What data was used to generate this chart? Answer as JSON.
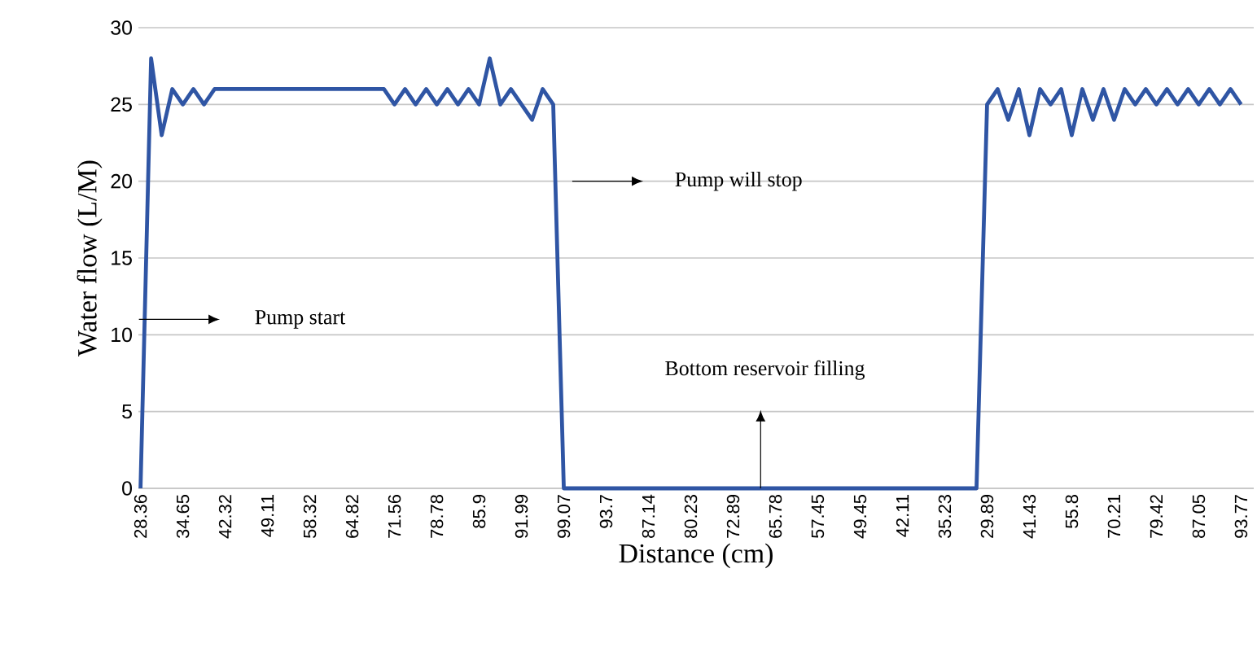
{
  "chart_data": {
    "type": "line",
    "xlabel": "Distance (cm)",
    "ylabel": "Water flow (L/M)",
    "categories": [
      "28.36",
      null,
      null,
      null,
      "34.65",
      null,
      null,
      null,
      "42.32",
      null,
      null,
      null,
      "49.11",
      null,
      null,
      null,
      "58.32",
      null,
      null,
      null,
      "64.82",
      null,
      null,
      null,
      "71.56",
      null,
      null,
      null,
      "78.78",
      null,
      null,
      null,
      "85.9",
      null,
      null,
      null,
      "91.99",
      null,
      null,
      null,
      "99.07",
      null,
      null,
      null,
      "93.7",
      null,
      null,
      null,
      "87.14",
      null,
      null,
      null,
      "80.23",
      null,
      null,
      null,
      "72.89",
      null,
      null,
      null,
      "65.78",
      null,
      null,
      null,
      "57.45",
      null,
      null,
      null,
      "49.45",
      null,
      null,
      null,
      "42.11",
      null,
      null,
      null,
      "35.23",
      null,
      null,
      null,
      "29.89",
      null,
      null,
      null,
      "41.43",
      null,
      null,
      null,
      "55.8",
      null,
      null,
      null,
      "70.21",
      null,
      null,
      null,
      "79.42",
      null,
      null,
      null,
      "87.05",
      null,
      null,
      null,
      "93.77"
    ],
    "series": [
      {
        "color": "#2f55a4",
        "values": [
          0,
          28,
          23,
          26,
          25,
          26,
          25,
          26,
          26,
          26,
          26,
          26,
          26,
          26,
          26,
          26,
          26,
          26,
          26,
          26,
          26,
          26,
          26,
          26,
          25,
          26,
          25,
          26,
          25,
          26,
          25,
          26,
          25,
          28,
          25,
          26,
          25,
          24,
          26,
          25,
          0,
          0,
          0,
          0,
          0,
          0,
          0,
          0,
          0,
          0,
          0,
          0,
          0,
          0,
          0,
          0,
          0,
          0,
          0,
          0,
          0,
          0,
          0,
          0,
          0,
          0,
          0,
          0,
          0,
          0,
          0,
          0,
          0,
          0,
          0,
          0,
          0,
          0,
          0,
          0,
          25,
          26,
          24,
          26,
          23,
          26,
          25,
          26,
          23,
          26,
          24,
          26,
          24,
          26,
          25,
          26,
          25,
          26,
          25,
          26,
          25,
          26,
          25,
          26,
          25
        ]
      }
    ],
    "ylim": [
      0,
      30
    ],
    "yticks": [
      0,
      5,
      10,
      15,
      20,
      25,
      30
    ],
    "grid": "y",
    "marker": "none",
    "line_style": "solid",
    "annotations": [
      "Pump start",
      "Pump will stop",
      "Bottom reservoir filling"
    ]
  }
}
